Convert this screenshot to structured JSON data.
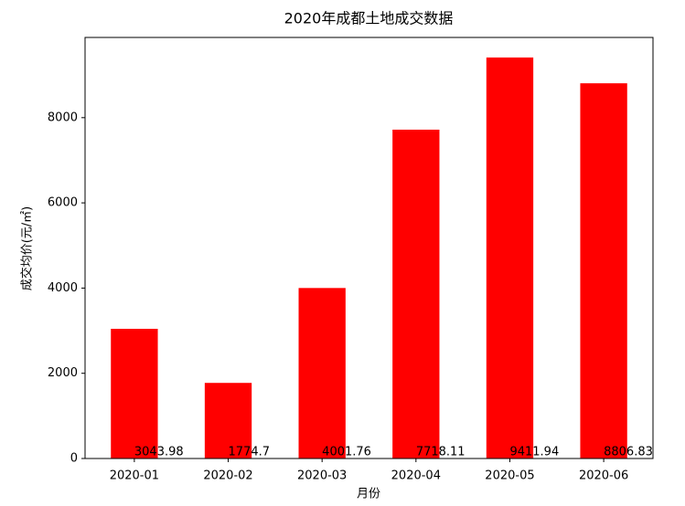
{
  "chart_data": {
    "type": "bar",
    "title": "2020年成都土地成交数据",
    "x_label": "月份",
    "y_label": "成交均价(元/㎡)",
    "categories": [
      "2020-01",
      "2020-02",
      "2020-03",
      "2020-04",
      "2020-05",
      "2020-06"
    ],
    "values": [
      3043.98,
      1774.7,
      4001.76,
      7718.11,
      9411.94,
      8806.83
    ],
    "color": "#ff0000",
    "ylim": [
      0,
      9882.5
    ],
    "yticks": [
      0,
      2000,
      4000,
      6000,
      8000
    ],
    "grid": false
  }
}
